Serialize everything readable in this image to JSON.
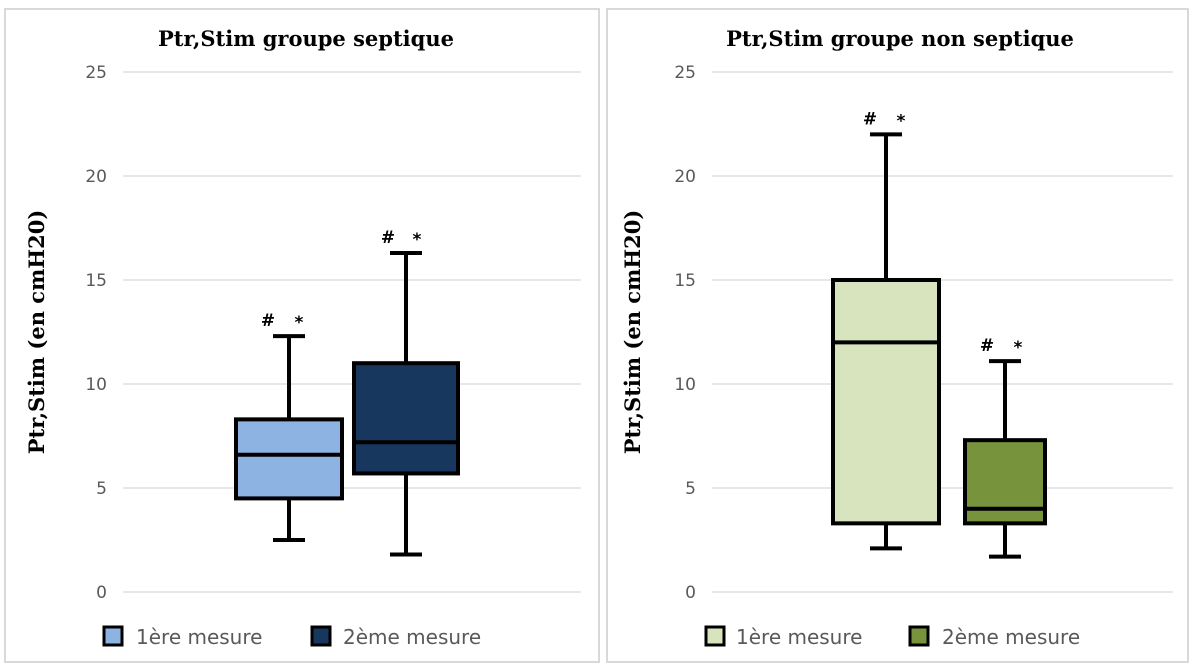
{
  "chart_data": [
    {
      "type": "boxplot",
      "title": "Ptr,Stim groupe septique",
      "ylabel": "Ptr,Stim (en cmH20)",
      "xlabel": "",
      "ylim": [
        0,
        25
      ],
      "yticks": [
        0,
        5,
        10,
        15,
        20,
        25
      ],
      "grid": true,
      "legend_position": "bottom",
      "series": [
        {
          "name": "1ère mesure",
          "color": "#8db3e2",
          "min": 2.5,
          "q1": 4.5,
          "median": 6.6,
          "q3": 8.3,
          "max": 12.3,
          "annotation": "#  *"
        },
        {
          "name": "2ème mesure",
          "color": "#17375e",
          "min": 1.8,
          "q1": 5.7,
          "median": 7.2,
          "q3": 11.0,
          "max": 16.3,
          "annotation": "#  *"
        }
      ]
    },
    {
      "type": "boxplot",
      "title": "Ptr,Stim groupe non septique",
      "ylabel": "Ptr,Stim (en cmH20)",
      "xlabel": "",
      "ylim": [
        0,
        25
      ],
      "yticks": [
        0,
        5,
        10,
        15,
        20,
        25
      ],
      "grid": true,
      "legend_position": "bottom",
      "series": [
        {
          "name": "1ère mesure",
          "color": "#d7e4bd",
          "min": 2.1,
          "q1": 3.3,
          "median": 12.0,
          "q3": 15.0,
          "max": 22.0,
          "annotation": "#  *"
        },
        {
          "name": "2ème mesure",
          "color": "#77933c",
          "min": 1.7,
          "q1": 3.3,
          "median": 4.0,
          "q3": 7.3,
          "max": 11.1,
          "annotation": "#  *"
        }
      ]
    }
  ]
}
